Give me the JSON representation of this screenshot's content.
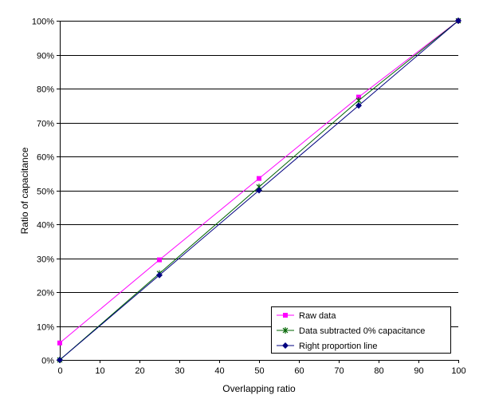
{
  "chart_data": {
    "type": "line",
    "title": "",
    "xlabel": "Overlapping ratio",
    "ylabel": "Ratio of capacitance",
    "xlim": [
      0,
      100
    ],
    "ylim": [
      0,
      100
    ],
    "x_ticks": [
      "0",
      "10",
      "20",
      "30",
      "40",
      "50",
      "60",
      "70",
      "80",
      "90",
      "100"
    ],
    "y_ticks": [
      "0%",
      "10%",
      "20%",
      "30%",
      "40%",
      "50%",
      "60%",
      "70%",
      "80%",
      "90%",
      "100%"
    ],
    "grid": "horizontal",
    "legend_position": "bottom-right",
    "series": [
      {
        "name": "Raw data",
        "color": "#ff00ff",
        "marker": "square",
        "x": [
          0,
          25,
          50,
          75,
          100
        ],
        "y": [
          5,
          29.5,
          53.5,
          77.5,
          100
        ]
      },
      {
        "name": "Data subtracted 0% capacitance",
        "color": "#006400",
        "marker": "star",
        "x": [
          0,
          25,
          50,
          75,
          100
        ],
        "y": [
          0,
          25.5,
          51,
          76.5,
          100
        ]
      },
      {
        "name": "Right proportion line",
        "color": "#000080",
        "marker": "diamond",
        "x": [
          0,
          25,
          50,
          75,
          100
        ],
        "y": [
          0,
          25,
          50,
          75,
          100
        ]
      }
    ]
  }
}
